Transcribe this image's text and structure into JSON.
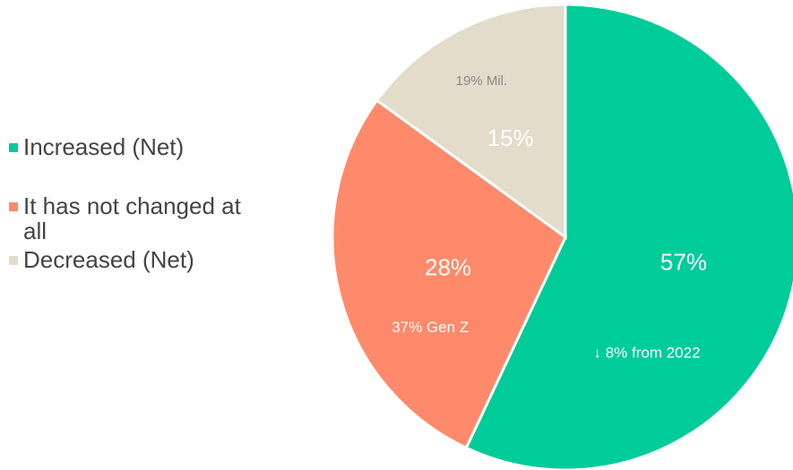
{
  "chart_data": {
    "type": "pie",
    "categories": [
      "Increased (Net)",
      "It has not changed at all",
      "Decreased (Net)"
    ],
    "values": [
      57,
      28,
      15
    ],
    "value_labels": [
      "57%",
      "28%",
      "15%"
    ],
    "slice_notes": [
      "↓ 8% from 2022",
      "37% Gen Z",
      "19% Mil."
    ],
    "colors": [
      "#00cc99",
      "#ff8a6b",
      "#e3dccb"
    ]
  }
}
